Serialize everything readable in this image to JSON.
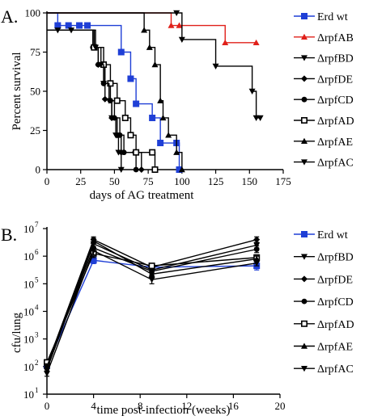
{
  "colors": {
    "axis": "#000000",
    "erd": "#1f3fd6",
    "rpfAB": "#e0201a",
    "other": "#000000"
  },
  "chart_data": [
    {
      "panel_label": "A.",
      "type": "line",
      "step": true,
      "title": "",
      "xlabel": "days of AG treatment",
      "ylabel": "Percent survival",
      "xlim": [
        0,
        175
      ],
      "ylim": [
        0,
        100
      ],
      "x_ticks": [
        "0",
        "25",
        "50",
        "75",
        "100",
        "125",
        "150",
        "175"
      ],
      "y_ticks": [
        "0",
        "25",
        "50",
        "75",
        "100"
      ],
      "grid": false,
      "legend_position": "right",
      "series": [
        {
          "name": "Erd wt",
          "color": "#1f3fd6",
          "marker": "square",
          "points": [
            [
              0,
              100
            ],
            [
              8,
              92
            ],
            [
              16,
              92
            ],
            [
              24,
              92
            ],
            [
              30,
              92
            ],
            [
              55,
              75
            ],
            [
              62,
              58
            ],
            [
              66,
              42
            ],
            [
              78,
              33
            ],
            [
              84,
              17
            ],
            [
              96,
              17
            ],
            [
              98,
              0
            ]
          ]
        },
        {
          "name": "ΔrpfAB",
          "color": "#e0201a",
          "marker": "triangle-up",
          "points": [
            [
              0,
              100
            ],
            [
              92,
              92
            ],
            [
              98,
              92
            ],
            [
              132,
              81
            ],
            [
              155,
              81
            ]
          ]
        },
        {
          "name": "ΔrpfBD",
          "color": "#000000",
          "marker": "triangle-down",
          "points": [
            [
              0,
              100
            ],
            [
              96,
              100
            ],
            [
              100,
              83
            ],
            [
              125,
              66
            ],
            [
              152,
              50
            ],
            [
              155,
              33
            ],
            [
              158,
              33
            ]
          ]
        },
        {
          "name": "ΔrpfDE",
          "color": "#000000",
          "marker": "diamond",
          "points": [
            [
              0,
              89
            ],
            [
              35,
              78
            ],
            [
              38,
              67
            ],
            [
              43,
              45
            ],
            [
              48,
              33
            ],
            [
              52,
              22
            ],
            [
              55,
              11
            ],
            [
              65,
              11
            ],
            [
              70,
              0
            ]
          ]
        },
        {
          "name": "ΔrpfCD",
          "color": "#000000",
          "marker": "circle",
          "points": [
            [
              0,
              89
            ],
            [
              34,
              78
            ],
            [
              38,
              67
            ],
            [
              42,
              55
            ],
            [
              47,
              44
            ],
            [
              50,
              33
            ],
            [
              54,
              22
            ],
            [
              57,
              11
            ],
            [
              66,
              0
            ]
          ]
        },
        {
          "name": "ΔrpfAD",
          "color": "#000000",
          "marker": "open-square",
          "points": [
            [
              0,
              89
            ],
            [
              35,
              78
            ],
            [
              42,
              67
            ],
            [
              47,
              55
            ],
            [
              52,
              44
            ],
            [
              58,
              33
            ],
            [
              62,
              22
            ],
            [
              66,
              11
            ],
            [
              78,
              11
            ],
            [
              80,
              0
            ]
          ]
        },
        {
          "name": "ΔrpfAE",
          "color": "#000000",
          "marker": "triangle-up",
          "points": [
            [
              0,
              100
            ],
            [
              72,
              89
            ],
            [
              76,
              78
            ],
            [
              80,
              67
            ],
            [
              84,
              44
            ],
            [
              86,
              33
            ],
            [
              90,
              22
            ],
            [
              96,
              11
            ],
            [
              100,
              0
            ]
          ]
        },
        {
          "name": "ΔrpfAC",
          "color": "#000000",
          "marker": "triangle-down",
          "points": [
            [
              0,
              89
            ],
            [
              8,
              89
            ],
            [
              18,
              89
            ],
            [
              36,
              78
            ],
            [
              40,
              67
            ],
            [
              42,
              55
            ],
            [
              46,
              44
            ],
            [
              48,
              33
            ],
            [
              51,
              22
            ],
            [
              53,
              11
            ],
            [
              55,
              0
            ]
          ]
        }
      ]
    },
    {
      "panel_label": "B.",
      "type": "line",
      "title": "",
      "xlabel": "time post-infection (weeks)",
      "ylabel": "cfu/lung",
      "x": [
        0,
        4,
        9,
        18
      ],
      "xlim": [
        0,
        20
      ],
      "ylim_log10": [
        1,
        7
      ],
      "log_scale_y": true,
      "x_ticks": [
        "0",
        "4",
        "8",
        "12",
        "16",
        "20"
      ],
      "y_ticks": [
        "10",
        "10",
        "10",
        "10",
        "10",
        "10",
        "10"
      ],
      "y_tick_exponents": [
        "1",
        "2",
        "3",
        "4",
        "5",
        "6",
        "7"
      ],
      "grid": false,
      "legend_position": "right",
      "error_bars": true,
      "series": [
        {
          "name": "Erd wt",
          "color": "#1f3fd6",
          "marker": "square",
          "log10_values": [
            2.05,
            5.85,
            5.6,
            5.65
          ],
          "log10_error": [
            0.15,
            0.12,
            0.1,
            0.15
          ]
        },
        {
          "name": "ΔrpfBD",
          "color": "#000000",
          "marker": "triangle-down",
          "log10_values": [
            1.9,
            6.45,
            5.5,
            6.4
          ],
          "log10_error": [
            0.1,
            0.2,
            0.1,
            0.1
          ]
        },
        {
          "name": "ΔrpfDE",
          "color": "#000000",
          "marker": "diamond",
          "log10_values": [
            2.05,
            6.6,
            5.6,
            6.6
          ],
          "log10_error": [
            0.1,
            0.1,
            0.1,
            0.1
          ]
        },
        {
          "name": "ΔrpfCD",
          "color": "#000000",
          "marker": "circle",
          "log10_values": [
            2.0,
            6.3,
            5.45,
            6.25
          ],
          "log10_error": [
            0.1,
            0.2,
            0.1,
            0.12
          ]
        },
        {
          "name": "ΔrpfAD",
          "color": "#000000",
          "marker": "open-square",
          "log10_values": [
            2.15,
            6.1,
            5.65,
            5.95
          ],
          "log10_error": [
            0.1,
            0.15,
            0.08,
            0.1
          ]
        },
        {
          "name": "ΔrpfAE",
          "color": "#000000",
          "marker": "triangle-up",
          "log10_values": [
            2.0,
            6.55,
            5.35,
            5.9
          ],
          "log10_error": [
            0.1,
            0.1,
            0.1,
            0.1
          ]
        },
        {
          "name": "ΔrpfAC",
          "color": "#000000",
          "marker": "triangle-down",
          "log10_values": [
            1.75,
            6.2,
            5.15,
            5.75
          ],
          "log10_error": [
            0.1,
            0.15,
            0.15,
            0.1
          ]
        }
      ]
    }
  ]
}
